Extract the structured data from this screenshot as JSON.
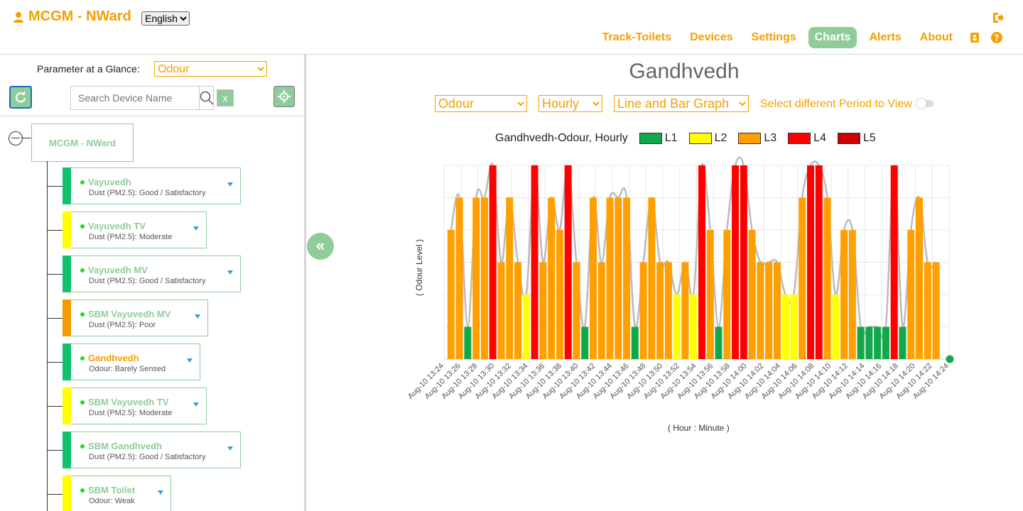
{
  "header": {
    "title": "MCGM - NWard",
    "language": "English",
    "nav": [
      "Track-Toilets",
      "Devices",
      "Settings",
      "Charts",
      "Alerts",
      "About"
    ],
    "active_nav": "Charts"
  },
  "sidebar": {
    "param_label": "Parameter at a Glance:",
    "param_value": "Odour",
    "search_placeholder": "Search Device Name",
    "clear_label": "x",
    "root": "MCGM - NWard",
    "devices": [
      {
        "name": "Vayuvedh",
        "status": "Dust (PM2.5): Good / Satisfactory",
        "color": "#11c26d"
      },
      {
        "name": "Vayuvedh TV",
        "status": "Dust (PM2.5): Moderate",
        "color": "#ffff00"
      },
      {
        "name": "Vayuvedh MV",
        "status": "Dust (PM2.5): Good / Satisfactory",
        "color": "#11c26d"
      },
      {
        "name": "SBM Vayuvedh MV",
        "status": "Dust (PM2.5): Poor",
        "color": "#f59a00"
      },
      {
        "name": "Gandhvedh",
        "status": "Odour: Barely Sensed",
        "color": "#11c26d"
      },
      {
        "name": "SBM Vayuvedh TV",
        "status": "Dust (PM2.5): Moderate",
        "color": "#ffff00"
      },
      {
        "name": "SBM Gandhvedh",
        "status": "Dust (PM2.5): Good / Satisfactory",
        "color": "#11c26d"
      },
      {
        "name": "SBM Toilet",
        "status": "Odour: Weak",
        "color": "#ffff00"
      }
    ],
    "selected_device": "Gandhvedh"
  },
  "main": {
    "title": "Gandhvedh",
    "param_select": "Odour",
    "interval_select": "Hourly",
    "graph_type_select": "Line and Bar Graph",
    "period_label": "Select different Period to View"
  },
  "chart_data": {
    "type": "bar",
    "title": "Gandhvedh-Odour, Hourly",
    "xlabel": "( Hour : Minute )",
    "ylabel": "( Odour Level )",
    "legend": [
      {
        "name": "L1",
        "color": "#11a84a"
      },
      {
        "name": "L2",
        "color": "#ffff00"
      },
      {
        "name": "L3",
        "color": "#ff9f00"
      },
      {
        "name": "L4",
        "color": "#ff0000"
      },
      {
        "name": "L5",
        "color": "#cc0000"
      }
    ],
    "x_ticks": [
      "Aug-10 13:24",
      "Aug-10 13:26",
      "Aug-10 13:28",
      "Aug-10 13:30",
      "Aug-10 13:32",
      "Aug-10 13:34",
      "Aug-10 13:36",
      "Aug-10 13:38",
      "Aug-10 13:40",
      "Aug-10 13:42",
      "Aug-10 13:44",
      "Aug-10 13:46",
      "Aug-10 13:48",
      "Aug-10 13:50",
      "Aug-10 13:52",
      "Aug-10 13:54",
      "Aug-10 13:56",
      "Aug-10 13:58",
      "Aug-10 14:00",
      "Aug-10 14:02",
      "Aug-10 14:04",
      "Aug-10 14:06",
      "Aug-10 14:08",
      "Aug-10 14:10",
      "Aug-10 14:12",
      "Aug-10 14:14",
      "Aug-10 14:16",
      "Aug-10 14:18",
      "Aug-10 14:20",
      "Aug-10 14:22",
      "Aug-10 14:24"
    ],
    "ylim": [
      0,
      6
    ],
    "values": [
      4,
      5,
      1,
      5,
      5,
      6,
      3,
      5,
      3,
      2,
      6,
      3,
      5,
      4,
      6,
      3,
      1,
      5,
      3,
      5,
      5,
      5,
      1,
      3,
      5,
      3,
      3,
      2,
      3,
      2,
      6,
      4,
      1,
      4,
      6,
      6,
      4,
      3,
      3,
      3,
      2,
      2,
      5,
      6,
      6,
      5,
      2,
      4,
      4,
      1,
      1,
      1,
      1,
      6,
      1,
      4,
      5,
      3,
      3
    ]
  }
}
